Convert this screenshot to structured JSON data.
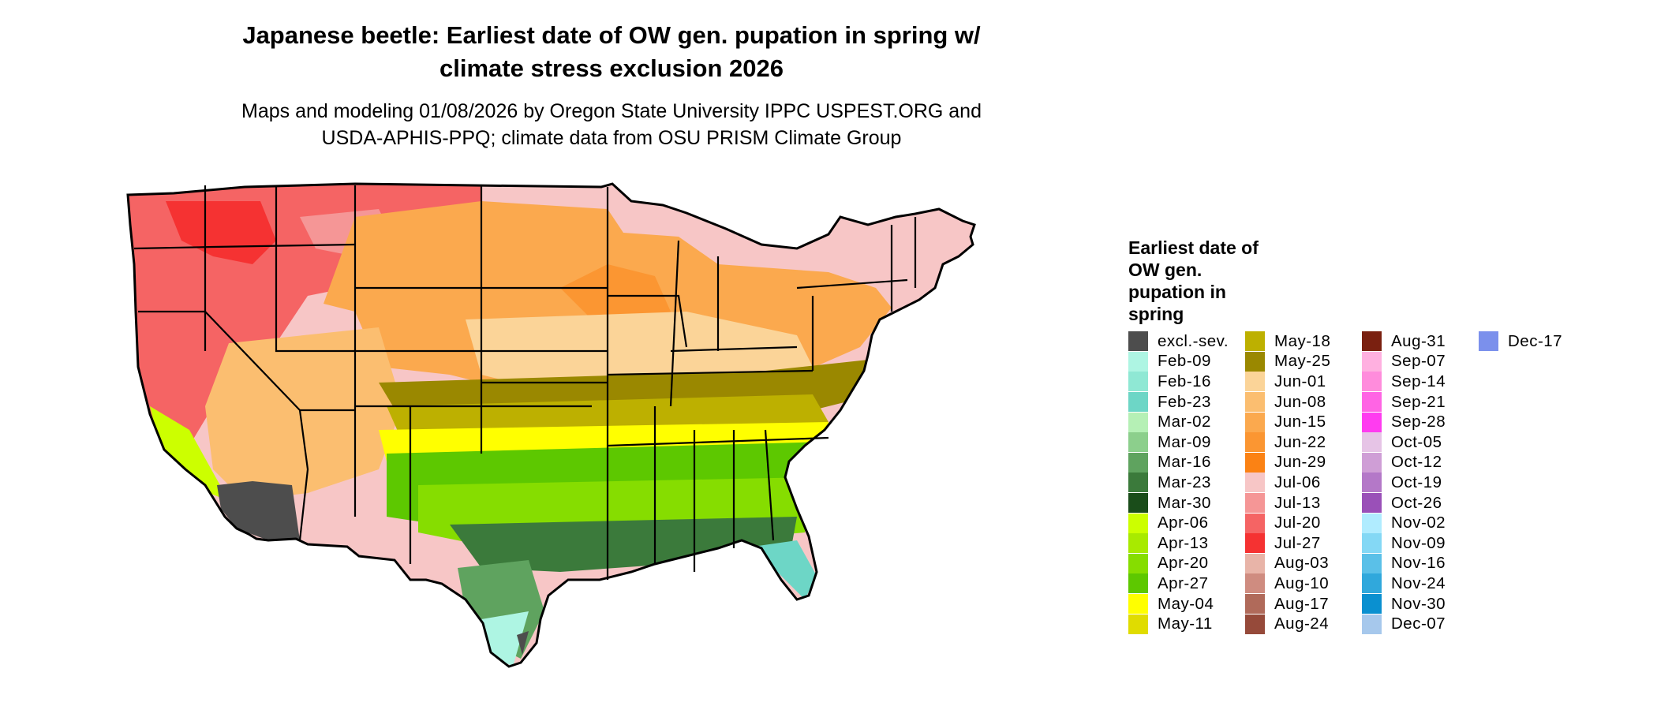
{
  "map": {
    "title_line1": "Japanese beetle: Earliest date of OW gen. pupation in spring w/",
    "title_line2": "climate stress exclusion 2026",
    "subtitle_line1": "Maps and modeling 01/08/2026 by Oregon State University IPPC USPEST.ORG and",
    "subtitle_line2": "USDA-APHIS-PPQ; climate data from OSU PRISM Climate Group"
  },
  "legend": {
    "title": "Earliest date of OW gen. pupation in spring",
    "columns": [
      [
        {
          "label": "excl.-sev.",
          "color": "#4d4d4d"
        },
        {
          "label": "Feb-09",
          "color": "#aef5e3"
        },
        {
          "label": "Feb-16",
          "color": "#8fe8d4"
        },
        {
          "label": "Feb-23",
          "color": "#6dd6c6"
        },
        {
          "label": "Mar-02",
          "color": "#b5f0b5"
        },
        {
          "label": "Mar-09",
          "color": "#8ccf8c"
        },
        {
          "label": "Mar-16",
          "color": "#5fa35f"
        },
        {
          "label": "Mar-23",
          "color": "#3b7a3b"
        },
        {
          "label": "Mar-30",
          "color": "#1a4d1a"
        },
        {
          "label": "Apr-06",
          "color": "#ccff00"
        },
        {
          "label": "Apr-13",
          "color": "#a8ea00"
        },
        {
          "label": "Apr-20",
          "color": "#86dd00"
        },
        {
          "label": "Apr-27",
          "color": "#5dc800"
        },
        {
          "label": "May-04",
          "color": "#ffff00"
        },
        {
          "label": "May-11",
          "color": "#e0dc00"
        }
      ],
      [
        {
          "label": "May-18",
          "color": "#bdb000"
        },
        {
          "label": "May-25",
          "color": "#9a8800"
        },
        {
          "label": "Jun-01",
          "color": "#fbd498"
        },
        {
          "label": "Jun-08",
          "color": "#fbbe70"
        },
        {
          "label": "Jun-15",
          "color": "#fba94e"
        },
        {
          "label": "Jun-22",
          "color": "#fb9632"
        },
        {
          "label": "Jun-29",
          "color": "#fb8214"
        },
        {
          "label": "Jul-06",
          "color": "#f7c6c6"
        },
        {
          "label": "Jul-13",
          "color": "#f59696"
        },
        {
          "label": "Jul-20",
          "color": "#f56464"
        },
        {
          "label": "Jul-27",
          "color": "#f53232"
        },
        {
          "label": "Aug-03",
          "color": "#e8b4a8"
        },
        {
          "label": "Aug-10",
          "color": "#cf8c80"
        },
        {
          "label": "Aug-17",
          "color": "#b06a5a"
        },
        {
          "label": "Aug-24",
          "color": "#964a3a"
        }
      ],
      [
        {
          "label": "Aug-31",
          "color": "#7a2010"
        },
        {
          "label": "Sep-07",
          "color": "#ffb0e0"
        },
        {
          "label": "Sep-14",
          "color": "#ff8cdc"
        },
        {
          "label": "Sep-21",
          "color": "#ff64e4"
        },
        {
          "label": "Sep-28",
          "color": "#ff3cf0"
        },
        {
          "label": "Oct-05",
          "color": "#e6c4e6"
        },
        {
          "label": "Oct-12",
          "color": "#cf9ed6"
        },
        {
          "label": "Oct-19",
          "color": "#b478c8"
        },
        {
          "label": "Oct-26",
          "color": "#9a50b8"
        },
        {
          "label": "Nov-02",
          "color": "#b0ecff"
        },
        {
          "label": "Nov-09",
          "color": "#84d8f5"
        },
        {
          "label": "Nov-16",
          "color": "#5ac0e8"
        },
        {
          "label": "Nov-24",
          "color": "#30a8dc"
        },
        {
          "label": "Nov-30",
          "color": "#0a90d0"
        },
        {
          "label": "Dec-07",
          "color": "#a6c8ec"
        }
      ],
      [
        {
          "label": "Dec-17",
          "color": "#7b90ec"
        }
      ]
    ]
  }
}
